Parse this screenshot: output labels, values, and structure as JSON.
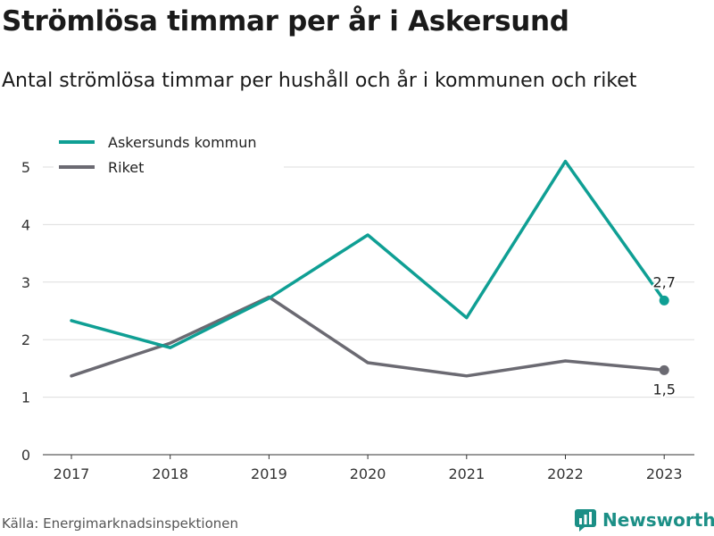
{
  "title": "Strömlösa timmar per år i Askersund",
  "subtitle": "Antal strömlösa timmar per hushåll och år i kommunen och riket",
  "source": "Källa: Energimarknadsinspektionen",
  "brand": "Newsworthy",
  "colors": {
    "kommun": "#0f9f94",
    "riket": "#6b6a72",
    "grid": "#dddddd",
    "brand": "#1b8f86"
  },
  "chart_data": {
    "type": "line",
    "title": "",
    "xlabel": "",
    "ylabel": "",
    "categories": [
      "2017",
      "2018",
      "2019",
      "2020",
      "2021",
      "2022",
      "2023"
    ],
    "ylim": [
      0,
      5
    ],
    "yticks": [
      "0",
      "1",
      "2",
      "3",
      "4",
      "5"
    ],
    "legend_position": "top-left",
    "series": [
      {
        "name": "Askersunds kommun",
        "values": [
          2.33,
          1.86,
          2.72,
          3.82,
          2.38,
          5.1,
          2.68
        ],
        "end_label": "2,7"
      },
      {
        "name": "Riket",
        "values": [
          1.37,
          1.94,
          2.74,
          1.6,
          1.37,
          1.63,
          1.47
        ],
        "end_label": "1,5"
      }
    ]
  }
}
